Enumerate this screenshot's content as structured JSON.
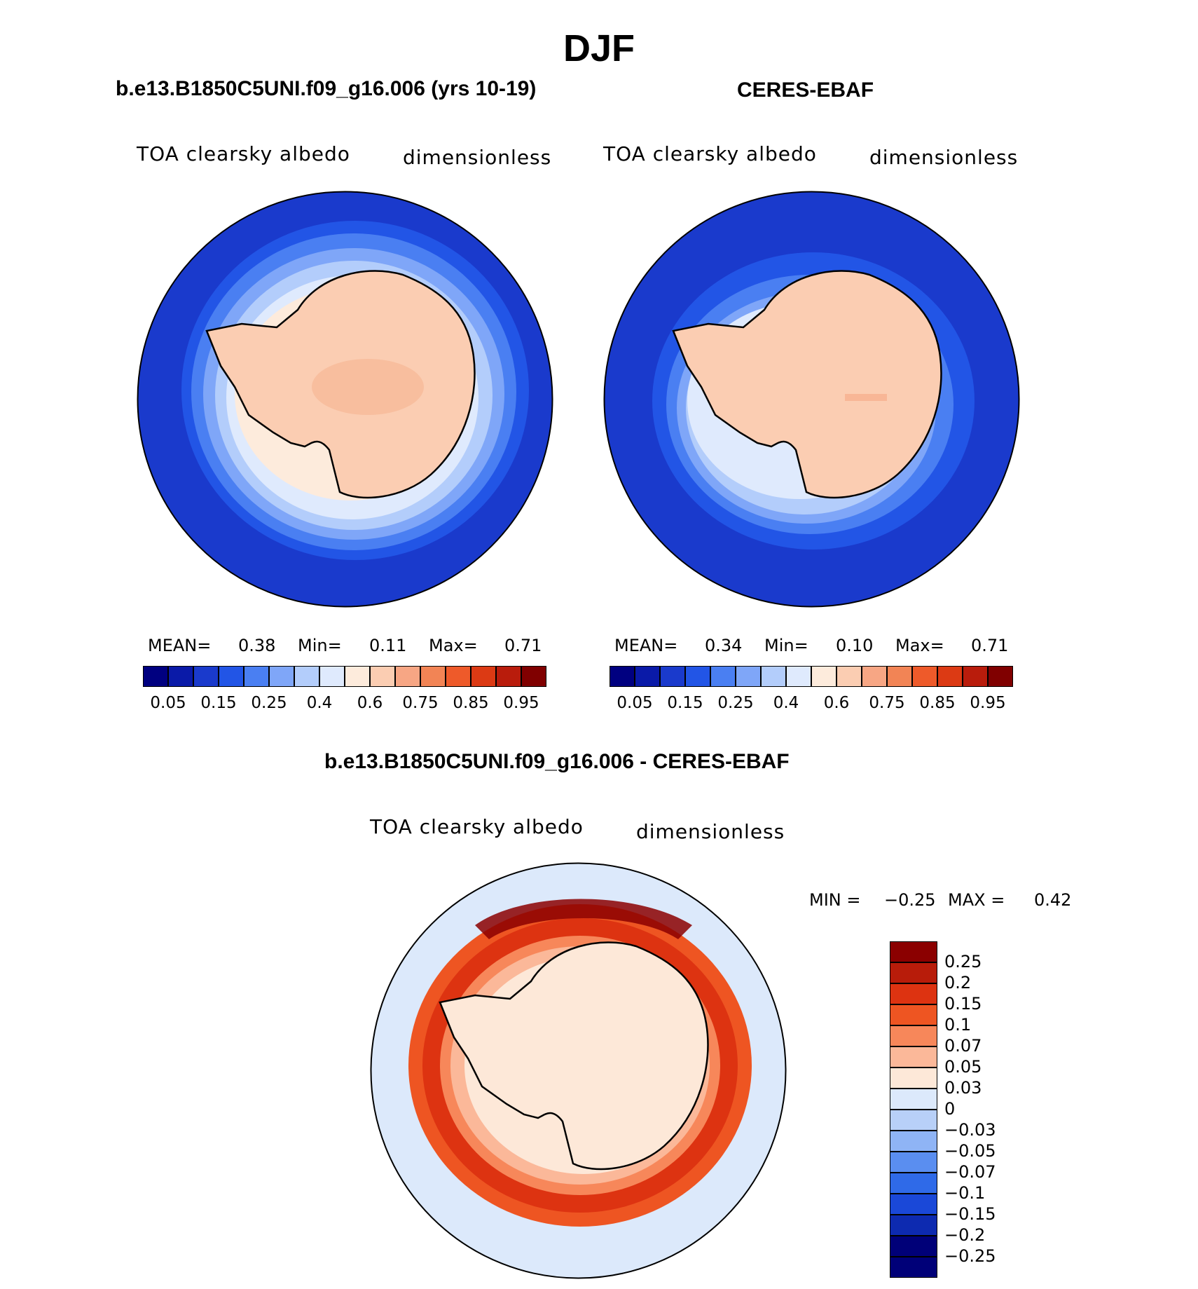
{
  "figure": {
    "title": "DJF",
    "panel_a_title": "b.e13.B1850C5UNI.f09_g16.006 (yrs 10-19)",
    "panel_b_title": "CERES-EBAF",
    "panel_c_title": "b.e13.B1850C5UNI.f09_g16.006 - CERES-EBAF"
  },
  "panels": {
    "a": {
      "variable": "TOA clearsky albedo",
      "units": "dimensionless",
      "mean_label": "MEAN=",
      "mean": "0.38",
      "min_label": "Min=",
      "min": "0.11",
      "max_label": "Max=",
      "max": "0.71"
    },
    "b": {
      "variable": "TOA clearsky albedo",
      "units": "dimensionless",
      "mean_label": "MEAN=",
      "mean": "0.34",
      "min_label": "Min=",
      "min": "0.10",
      "max_label": "Max=",
      "max": "0.71"
    },
    "c": {
      "variable": "TOA clearsky albedo",
      "units": "dimensionless",
      "min_label": "MIN =",
      "min": "−0.25",
      "max_label": "MAX =",
      "max": "0.42"
    }
  },
  "colorbar_abs": {
    "colors": [
      "#000080",
      "#0a1aa8",
      "#1a3acc",
      "#2255e6",
      "#4a7ff2",
      "#7fa6f8",
      "#b3cdfb",
      "#dfeafd",
      "#fdebdc",
      "#fbcdb2",
      "#f7a684",
      "#f28455",
      "#ee5a2a",
      "#dc3a14",
      "#b91c0c",
      "#800000"
    ],
    "tick_labels": [
      "0.05",
      "0.15",
      "0.25",
      "0.4",
      "0.6",
      "0.75",
      "0.85",
      "0.95"
    ]
  },
  "colorbar_diff": {
    "colors": [
      "#8b0000",
      "#b81c0a",
      "#dd3311",
      "#ee5522",
      "#f7875a",
      "#fbb899",
      "#fde8d8",
      "#dce9fb",
      "#b8d0f8",
      "#8fb4f5",
      "#5a8ef0",
      "#2f6ae8",
      "#1a48d8",
      "#0d2ab0",
      "#000078"
    ],
    "tick_labels": [
      "0.25",
      "0.2",
      "0.15",
      "0.1",
      "0.07",
      "0.05",
      "0.03",
      "0",
      "−0.03",
      "−0.05",
      "−0.07",
      "−0.1",
      "−0.15",
      "−0.2",
      "−0.25"
    ]
  },
  "chart_data": [
    {
      "type": "heatmap",
      "title": "b.e13.B1850C5UNI.f09_g16.006 (yrs 10-19)",
      "variable": "TOA clearsky albedo",
      "units": "dimensionless",
      "projection": "south polar stereographic",
      "mean": 0.38,
      "min": 0.11,
      "max": 0.71,
      "levels": [
        0.05,
        0.1,
        0.15,
        0.2,
        0.25,
        0.3,
        0.4,
        0.5,
        0.6,
        0.7,
        0.75,
        0.8,
        0.85,
        0.9,
        0.95
      ]
    },
    {
      "type": "heatmap",
      "title": "CERES-EBAF",
      "variable": "TOA clearsky albedo",
      "units": "dimensionless",
      "projection": "south polar stereographic",
      "mean": 0.34,
      "min": 0.1,
      "max": 0.71,
      "levels": [
        0.05,
        0.1,
        0.15,
        0.2,
        0.25,
        0.3,
        0.4,
        0.5,
        0.6,
        0.7,
        0.75,
        0.8,
        0.85,
        0.9,
        0.95
      ]
    },
    {
      "type": "heatmap",
      "title": "b.e13.B1850C5UNI.f09_g16.006 - CERES-EBAF",
      "variable": "TOA clearsky albedo",
      "units": "dimensionless",
      "projection": "south polar stereographic",
      "min": -0.25,
      "max": 0.42,
      "levels": [
        -0.25,
        -0.2,
        -0.15,
        -0.1,
        -0.07,
        -0.05,
        -0.03,
        0,
        0.03,
        0.05,
        0.07,
        0.1,
        0.15,
        0.2,
        0.25
      ]
    }
  ]
}
